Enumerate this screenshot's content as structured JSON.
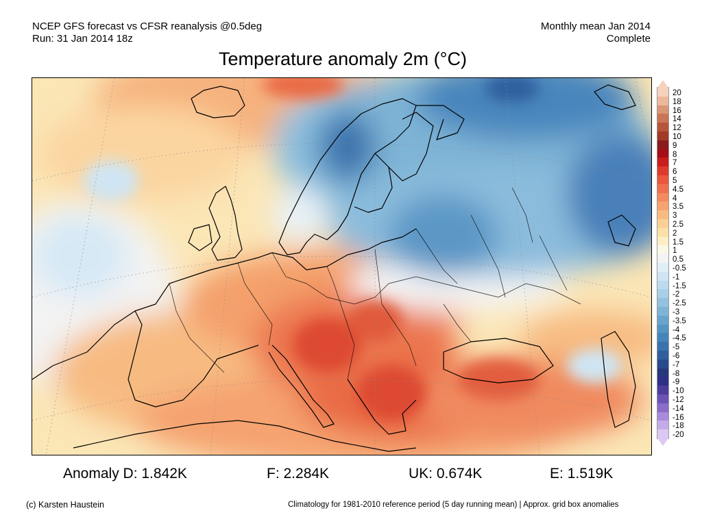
{
  "header": {
    "left_line1": "NCEP GFS forecast vs CFSR reanalysis @0.5deg",
    "left_line2": "Run: 31 Jan 2014 18z",
    "right_line1": "Monthly mean Jan 2014",
    "right_line2": "Complete"
  },
  "title": "Temperature anomaly 2m (°C)",
  "colorbar": {
    "labels": [
      "20",
      "18",
      "16",
      "14",
      "12",
      "10",
      "9",
      "8",
      "7",
      "6",
      "5",
      "4.5",
      "4",
      "3.5",
      "3",
      "2.5",
      "2",
      "1.5",
      "1",
      "0.5",
      "-0.5",
      "-1",
      "-1.5",
      "-2",
      "-2.5",
      "-3",
      "-3.5",
      "-4",
      "-4.5",
      "-5",
      "-6",
      "-7",
      "-8",
      "-9",
      "-10",
      "-12",
      "-14",
      "-16",
      "-18",
      "-20"
    ],
    "colors": [
      "#f6d2bd",
      "#edb79c",
      "#d99675",
      "#c97656",
      "#b7553a",
      "#a13a26",
      "#8b1a1a",
      "#a50f15",
      "#c81d1d",
      "#dd3a2c",
      "#e9573d",
      "#ef7050",
      "#f28a5f",
      "#f5a36f",
      "#f7bb82",
      "#f9d095",
      "#fbe1a9",
      "#fdeec3",
      "#fbf7e6",
      "#f3f3f3",
      "#e0eef8",
      "#cfe5f3",
      "#bddbee",
      "#a8cfe7",
      "#93c2df",
      "#7eb4d6",
      "#69a4cc",
      "#5595c3",
      "#4585ba",
      "#3a73ad",
      "#2f5f9e",
      "#284b8d",
      "#26387a",
      "#302f86",
      "#4b3d9c",
      "#6a53b5",
      "#8a6cc9",
      "#a88bda",
      "#c4abe8",
      "#dcc9f3"
    ]
  },
  "stats": {
    "d": "Anomaly D: 1.842K",
    "f": "F: 2.284K",
    "uk": "UK: 0.674K",
    "e": "E: 1.519K"
  },
  "footer": {
    "copyright": "(c) Karsten Haustein",
    "note": "Climatology for 1981-2010 reference period (5 day running mean) | Approx. grid box anomalies"
  }
}
